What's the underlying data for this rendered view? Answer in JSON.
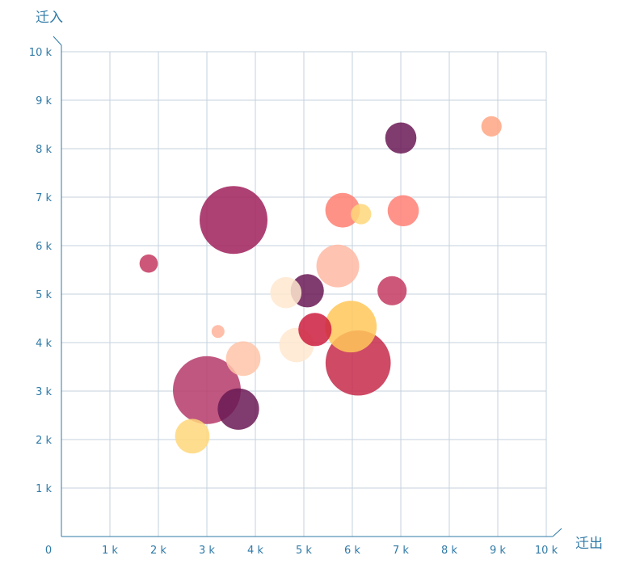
{
  "chart_data": {
    "type": "scatter",
    "subtype": "bubble",
    "xlabel": "迁出",
    "ylabel": "迁入",
    "xlim": [
      0,
      10000
    ],
    "ylim": [
      0,
      10000
    ],
    "x_ticks": [
      {
        "v": 0,
        "label": "0"
      },
      {
        "v": 1000,
        "label": "1 k"
      },
      {
        "v": 2000,
        "label": "2 k"
      },
      {
        "v": 3000,
        "label": "3 k"
      },
      {
        "v": 4000,
        "label": "4 k"
      },
      {
        "v": 5000,
        "label": "5 k"
      },
      {
        "v": 6000,
        "label": "6 k"
      },
      {
        "v": 7000,
        "label": "7 k"
      },
      {
        "v": 8000,
        "label": "8 k"
      },
      {
        "v": 9000,
        "label": "9 k"
      },
      {
        "v": 10000,
        "label": "10 k"
      }
    ],
    "y_ticks": [
      {
        "v": 1000,
        "label": "1 k"
      },
      {
        "v": 2000,
        "label": "2 k"
      },
      {
        "v": 3000,
        "label": "3 k"
      },
      {
        "v": 4000,
        "label": "4 k"
      },
      {
        "v": 5000,
        "label": "5 k"
      },
      {
        "v": 6000,
        "label": "6 k"
      },
      {
        "v": 7000,
        "label": "7 k"
      },
      {
        "v": 8000,
        "label": "8 k"
      },
      {
        "v": 9000,
        "label": "9 k"
      },
      {
        "v": 10000,
        "label": "10 k"
      }
    ],
    "grid": true,
    "size_note": "bubble size value is relative (largest = 1.0)",
    "points": [
      {
        "x": 3550,
        "y": 6530,
        "size": 1.0,
        "color": "#a0205a"
      },
      {
        "x": 6120,
        "y": 3580,
        "size": 0.96,
        "color": "#c52a4a"
      },
      {
        "x": 3000,
        "y": 3020,
        "size": 1.0,
        "color": "#b53a6a"
      },
      {
        "x": 5970,
        "y": 4330,
        "size": 0.76,
        "color": "#ffc759"
      },
      {
        "x": 5700,
        "y": 5580,
        "size": 0.63,
        "color": "#ffb9a3"
      },
      {
        "x": 3650,
        "y": 2630,
        "size": 0.61,
        "color": "#6a1a55"
      },
      {
        "x": 4850,
        "y": 3950,
        "size": 0.51,
        "color": "#ffe8cf"
      },
      {
        "x": 3750,
        "y": 3670,
        "size": 0.51,
        "color": "#ffc4a8"
      },
      {
        "x": 5800,
        "y": 6730,
        "size": 0.51,
        "color": "#ff7f72"
      },
      {
        "x": 2700,
        "y": 2070,
        "size": 0.51,
        "color": "#ffd77a"
      },
      {
        "x": 5230,
        "y": 4270,
        "size": 0.49,
        "color": "#cc1f3f"
      },
      {
        "x": 5070,
        "y": 5070,
        "size": 0.49,
        "color": "#6a1a55"
      },
      {
        "x": 7050,
        "y": 6720,
        "size": 0.46,
        "color": "#ff8075"
      },
      {
        "x": 4630,
        "y": 5030,
        "size": 0.46,
        "color": "#ffe8cf"
      },
      {
        "x": 6820,
        "y": 5070,
        "size": 0.43,
        "color": "#c43a60"
      },
      {
        "x": 7000,
        "y": 8220,
        "size": 0.46,
        "color": "#6a1a55"
      },
      {
        "x": 6180,
        "y": 6650,
        "size": 0.3,
        "color": "#ffd77a"
      },
      {
        "x": 8870,
        "y": 8460,
        "size": 0.3,
        "color": "#ffa684"
      },
      {
        "x": 1800,
        "y": 5630,
        "size": 0.27,
        "color": "#c43a60"
      },
      {
        "x": 3230,
        "y": 4230,
        "size": 0.19,
        "color": "#ffb39a"
      }
    ],
    "colors": {
      "axis": "#2f7aa7",
      "grid": "#c5d2dc",
      "tick_text": "#2f7aa7"
    }
  }
}
